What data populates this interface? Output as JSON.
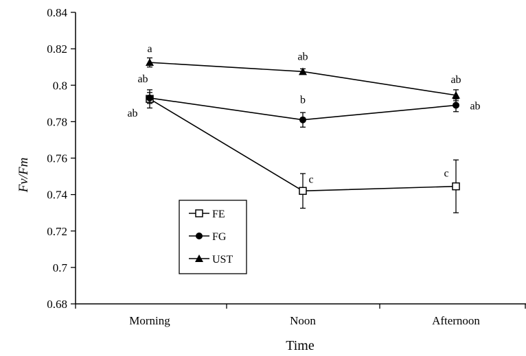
{
  "chart_data": {
    "type": "line",
    "categories": [
      "Morning",
      "Noon",
      "Afternoon"
    ],
    "xlabel": "Time",
    "ylabel": "Fv/Fm",
    "ylim": [
      0.68,
      0.84
    ],
    "yticks": [
      0.68,
      0.7,
      0.72,
      0.74,
      0.76,
      0.78,
      0.8,
      0.82,
      0.84
    ],
    "ytick_labels": [
      "0.68",
      "0.7",
      "0.72",
      "0.74",
      "0.76",
      "0.78",
      "0.8",
      "0.82",
      "0.84"
    ],
    "grid": false,
    "legend_position": "lower-left",
    "series": [
      {
        "name": "FE",
        "marker": "open-square",
        "values": [
          0.7925,
          0.742,
          0.7445
        ],
        "errors": [
          0.005,
          0.0095,
          0.0145
        ],
        "letters": [
          "ab",
          "c",
          "c"
        ]
      },
      {
        "name": "FG",
        "marker": "filled-circle",
        "values": [
          0.793,
          0.781,
          0.789
        ],
        "errors": [
          0.003,
          0.004,
          0.0035
        ],
        "letters": [
          "ab",
          "b",
          "ab"
        ]
      },
      {
        "name": "UST",
        "marker": "filled-triangle",
        "values": [
          0.8125,
          0.8075,
          0.7945
        ],
        "errors": [
          0.0025,
          0.0015,
          0.003
        ],
        "letters": [
          "a",
          "ab",
          "ab"
        ]
      }
    ]
  }
}
